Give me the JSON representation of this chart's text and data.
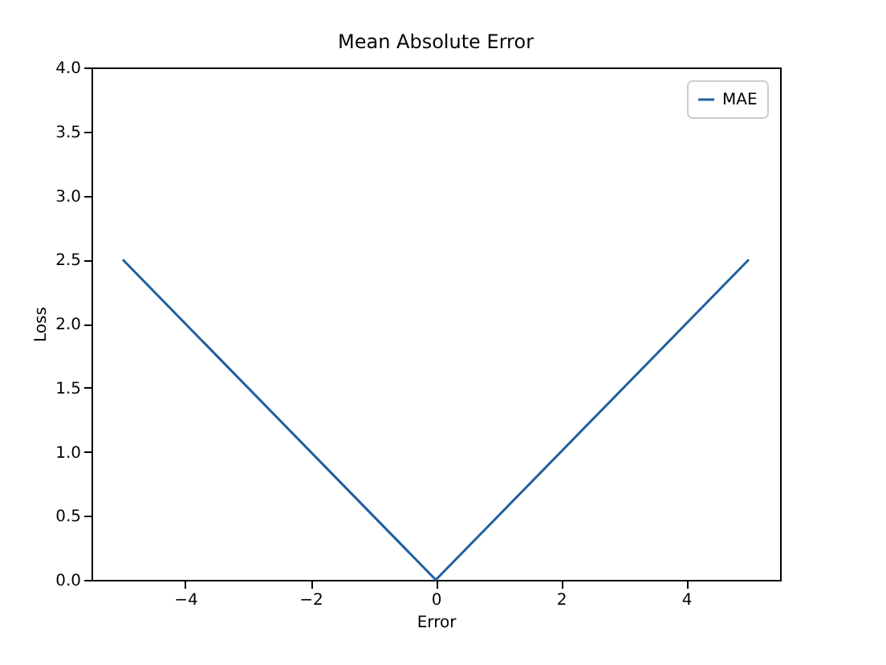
{
  "chart_data": {
    "type": "line",
    "title": "Mean Absolute Error",
    "xlabel": "Error",
    "ylabel": "Loss",
    "x": [
      -5,
      0,
      5
    ],
    "series": [
      {
        "name": "MAE",
        "color": "#1f5f9f",
        "values": [
          2.5,
          0,
          2.5
        ]
      }
    ],
    "xlim": [
      -5.5,
      5.5
    ],
    "xticks": [
      {
        "value": -4,
        "label": "−4"
      },
      {
        "value": -2,
        "label": "−2"
      },
      0,
      2,
      4
    ],
    "ylim": [
      0,
      4
    ],
    "yticks": [
      {
        "value": 0,
        "label": "0.0"
      },
      {
        "value": 0.5,
        "label": "0.5"
      },
      {
        "value": 1,
        "label": "1.0"
      },
      {
        "value": 1.5,
        "label": "1.5"
      },
      {
        "value": 2,
        "label": "2.0"
      },
      {
        "value": 2.5,
        "label": "2.5"
      },
      {
        "value": 3,
        "label": "3.0"
      },
      {
        "value": 3.5,
        "label": "3.5"
      },
      {
        "value": 4,
        "label": "4.0"
      }
    ],
    "grid": false,
    "legend": "top right",
    "marker": "none",
    "line_style": "solid"
  }
}
